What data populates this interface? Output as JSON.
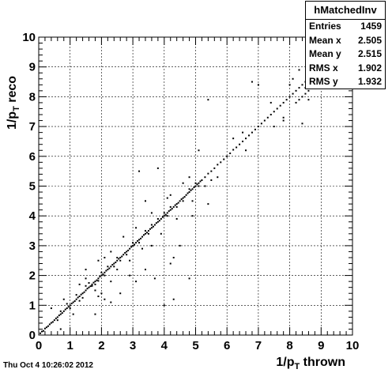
{
  "chart_data": {
    "type": "scatter",
    "title": "",
    "xlabel_main": "1/p",
    "xlabel_sub": "T",
    "xlabel_rest": " thrown",
    "ylabel_main": "1/p",
    "ylabel_sub": "T",
    "ylabel_rest": " reco",
    "xlim": [
      0,
      10
    ],
    "ylim": [
      0,
      10
    ],
    "grid": true,
    "x_ticks": [
      "0",
      "1",
      "2",
      "3",
      "4",
      "5",
      "6",
      "7",
      "8",
      "9",
      "10"
    ],
    "y_ticks": [
      "0",
      "1",
      "2",
      "3",
      "4",
      "5",
      "6",
      "7",
      "8",
      "9",
      "10"
    ],
    "series": [
      {
        "points": [
          [
            0.05,
            0.06
          ],
          [
            0.1,
            0.12
          ],
          [
            0.15,
            0.14
          ],
          [
            0.2,
            0.22
          ],
          [
            0.25,
            0.26
          ],
          [
            0.3,
            0.3
          ],
          [
            0.35,
            0.36
          ],
          [
            0.4,
            0.41
          ],
          [
            0.45,
            0.44
          ],
          [
            0.5,
            0.5
          ],
          [
            0.55,
            0.56
          ],
          [
            0.6,
            0.6
          ],
          [
            0.65,
            0.66
          ],
          [
            0.7,
            0.7
          ],
          [
            0.75,
            0.74
          ],
          [
            0.8,
            0.8
          ],
          [
            0.85,
            0.86
          ],
          [
            0.9,
            0.9
          ],
          [
            0.95,
            0.95
          ],
          [
            1.0,
            1.0
          ],
          [
            1.05,
            1.06
          ],
          [
            1.1,
            1.1
          ],
          [
            1.15,
            1.14
          ],
          [
            1.2,
            1.2
          ],
          [
            1.25,
            1.26
          ],
          [
            1.3,
            1.3
          ],
          [
            1.35,
            1.36
          ],
          [
            1.4,
            1.4
          ],
          [
            1.45,
            1.44
          ],
          [
            1.5,
            1.5
          ],
          [
            1.55,
            1.56
          ],
          [
            1.6,
            1.6
          ],
          [
            1.65,
            1.64
          ],
          [
            1.7,
            1.7
          ],
          [
            1.75,
            1.76
          ],
          [
            1.8,
            1.8
          ],
          [
            1.85,
            1.84
          ],
          [
            1.9,
            1.9
          ],
          [
            1.95,
            1.96
          ],
          [
            2.0,
            2.0
          ],
          [
            2.05,
            2.04
          ],
          [
            2.1,
            2.1
          ],
          [
            2.15,
            2.16
          ],
          [
            2.2,
            2.2
          ],
          [
            2.25,
            2.24
          ],
          [
            2.3,
            2.3
          ],
          [
            2.35,
            2.36
          ],
          [
            2.4,
            2.4
          ],
          [
            2.45,
            2.44
          ],
          [
            2.5,
            2.5
          ],
          [
            2.55,
            2.56
          ],
          [
            2.6,
            2.6
          ],
          [
            2.65,
            2.64
          ],
          [
            2.7,
            2.7
          ],
          [
            2.75,
            2.76
          ],
          [
            2.8,
            2.8
          ],
          [
            2.85,
            2.84
          ],
          [
            2.9,
            2.9
          ],
          [
            2.95,
            2.96
          ],
          [
            3.0,
            3.0
          ],
          [
            3.05,
            3.04
          ],
          [
            3.1,
            3.1
          ],
          [
            3.15,
            3.16
          ],
          [
            3.2,
            3.2
          ],
          [
            3.25,
            3.24
          ],
          [
            3.3,
            3.3
          ],
          [
            3.35,
            3.36
          ],
          [
            3.4,
            3.4
          ],
          [
            3.45,
            3.44
          ],
          [
            3.5,
            3.5
          ],
          [
            3.55,
            3.56
          ],
          [
            3.6,
            3.6
          ],
          [
            3.65,
            3.64
          ],
          [
            3.7,
            3.7
          ],
          [
            3.75,
            3.76
          ],
          [
            3.8,
            3.8
          ],
          [
            3.85,
            3.84
          ],
          [
            3.9,
            3.9
          ],
          [
            3.95,
            3.96
          ],
          [
            4.0,
            4.0
          ],
          [
            4.05,
            4.04
          ],
          [
            4.1,
            4.1
          ],
          [
            4.15,
            4.16
          ],
          [
            4.2,
            4.2
          ],
          [
            4.25,
            4.24
          ],
          [
            4.3,
            4.3
          ],
          [
            4.35,
            4.36
          ],
          [
            4.4,
            4.4
          ],
          [
            4.45,
            4.44
          ],
          [
            4.5,
            4.5
          ],
          [
            4.55,
            4.56
          ],
          [
            4.6,
            4.6
          ],
          [
            4.65,
            4.64
          ],
          [
            4.7,
            4.7
          ],
          [
            4.75,
            4.76
          ],
          [
            4.8,
            4.8
          ],
          [
            4.85,
            4.86
          ],
          [
            4.9,
            4.9
          ],
          [
            4.95,
            4.96
          ],
          [
            5.0,
            5.0
          ],
          [
            5.05,
            5.06
          ],
          [
            5.1,
            5.1
          ],
          [
            5.15,
            5.16
          ],
          [
            5.2,
            5.2
          ],
          [
            5.3,
            5.3
          ],
          [
            5.4,
            5.42
          ],
          [
            5.5,
            5.5
          ],
          [
            5.6,
            5.6
          ],
          [
            5.7,
            5.72
          ],
          [
            5.8,
            5.8
          ],
          [
            5.9,
            5.9
          ],
          [
            6.0,
            6.0
          ],
          [
            6.1,
            6.1
          ],
          [
            6.2,
            6.22
          ],
          [
            6.3,
            6.3
          ],
          [
            6.4,
            6.4
          ],
          [
            6.5,
            6.5
          ],
          [
            6.6,
            6.6
          ],
          [
            6.7,
            6.7
          ],
          [
            6.8,
            6.8
          ],
          [
            6.9,
            6.9
          ],
          [
            7.0,
            7.0
          ],
          [
            7.1,
            7.1
          ],
          [
            7.2,
            7.2
          ],
          [
            7.3,
            7.3
          ],
          [
            7.4,
            7.4
          ],
          [
            7.5,
            7.5
          ],
          [
            7.6,
            7.6
          ],
          [
            7.7,
            7.7
          ],
          [
            7.8,
            7.8
          ],
          [
            7.9,
            7.9
          ],
          [
            8.0,
            8.0
          ],
          [
            8.1,
            8.1
          ],
          [
            8.2,
            8.2
          ],
          [
            8.3,
            8.3
          ],
          [
            8.4,
            8.4
          ],
          [
            8.5,
            8.5
          ],
          [
            8.6,
            8.6
          ],
          [
            8.7,
            8.7
          ],
          [
            8.8,
            8.8
          ],
          [
            8.9,
            8.9
          ],
          [
            1.6,
            1.75
          ],
          [
            1.7,
            1.65
          ],
          [
            1.8,
            1.7
          ],
          [
            1.9,
            1.82
          ],
          [
            2.0,
            2.1
          ],
          [
            2.1,
            2.0
          ],
          [
            2.2,
            2.3
          ],
          [
            2.4,
            2.3
          ],
          [
            2.5,
            2.6
          ],
          [
            2.6,
            2.5
          ],
          [
            2.8,
            2.7
          ],
          [
            3.0,
            3.1
          ],
          [
            3.2,
            3.1
          ],
          [
            3.4,
            3.5
          ],
          [
            3.5,
            3.4
          ],
          [
            3.6,
            3.7
          ],
          [
            3.8,
            3.9
          ],
          [
            4.0,
            4.1
          ],
          [
            4.1,
            4.0
          ],
          [
            4.2,
            4.3
          ],
          [
            4.4,
            4.3
          ],
          [
            4.6,
            4.5
          ],
          [
            4.8,
            4.9
          ],
          [
            5.0,
            5.1
          ],
          [
            5.1,
            5.0
          ],
          [
            1.2,
            1.35
          ],
          [
            1.3,
            1.15
          ],
          [
            1.4,
            1.25
          ],
          [
            1.5,
            1.65
          ],
          [
            0.9,
            1.05
          ],
          [
            1.0,
            0.9
          ],
          [
            0.7,
            0.8
          ],
          [
            0.6,
            0.5
          ],
          [
            1.5,
            1.9
          ],
          [
            1.8,
            1.5
          ],
          [
            2.3,
            2.8
          ],
          [
            2.5,
            2.2
          ],
          [
            2.7,
            3.3
          ],
          [
            2.9,
            2.5
          ],
          [
            3.1,
            3.6
          ],
          [
            3.3,
            2.9
          ],
          [
            3.6,
            4.1
          ],
          [
            3.9,
            3.4
          ],
          [
            4.2,
            4.7
          ],
          [
            4.4,
            3.9
          ],
          [
            4.6,
            5.1
          ],
          [
            4.9,
            4.5
          ],
          [
            1.1,
            0.7
          ],
          [
            0.8,
            1.2
          ],
          [
            1.3,
            1.7
          ],
          [
            1.9,
            1.3
          ],
          [
            2.1,
            2.6
          ],
          [
            2.3,
            1.8
          ],
          [
            5.3,
            5.0
          ],
          [
            5.7,
            5.3
          ],
          [
            6.2,
            6.6
          ],
          [
            6.6,
            6.2
          ],
          [
            7.4,
            7.8
          ],
          [
            7.8,
            7.3
          ],
          [
            8.0,
            8.4
          ],
          [
            8.3,
            7.9
          ],
          [
            8.6,
            8.2
          ],
          [
            8.7,
            9.0
          ],
          [
            8.2,
            7.8
          ],
          [
            8.5,
            8.1
          ],
          [
            8.4,
            8.0
          ],
          [
            8.8,
            8.5
          ],
          [
            3.2,
            5.5
          ],
          [
            3.8,
            5.6
          ],
          [
            4.0,
            1.0
          ],
          [
            4.3,
            1.2
          ],
          [
            4.5,
            3.0
          ],
          [
            4.8,
            1.9
          ],
          [
            3.1,
            1.8
          ],
          [
            2.6,
            1.4
          ],
          [
            3.6,
            3.0
          ],
          [
            5.4,
            7.9
          ],
          [
            5.5,
            5.2
          ],
          [
            5.1,
            6.2
          ],
          [
            4.8,
            5.3
          ],
          [
            6.8,
            8.5
          ],
          [
            7.0,
            8.4
          ],
          [
            8.5,
            8.3
          ],
          [
            8.1,
            8.6
          ],
          [
            8.3,
            8.9
          ],
          [
            8.9,
            8.6
          ],
          [
            8.6,
            7.9
          ],
          [
            8.4,
            7.1
          ],
          [
            7.8,
            7.2
          ],
          [
            7.5,
            7.0
          ],
          [
            6.5,
            6.8
          ],
          [
            5.4,
            4.4
          ],
          [
            4.9,
            4.0
          ],
          [
            4.1,
            4.6
          ],
          [
            4.2,
            2.4
          ],
          [
            4.3,
            2.6
          ],
          [
            2.9,
            2.0
          ],
          [
            3.4,
            4.5
          ],
          [
            1.9,
            2.5
          ],
          [
            0.7,
            0.2
          ],
          [
            0.4,
            0.9
          ],
          [
            1.8,
            0.7
          ],
          [
            2.3,
            1.1
          ],
          [
            2.1,
            1.2
          ],
          [
            3.7,
            1.9
          ],
          [
            3.4,
            2.2
          ],
          [
            1.5,
            2.2
          ],
          [
            2.0,
            1.4
          ]
        ]
      }
    ]
  },
  "stats": {
    "title": "hMatchedInv",
    "rows": [
      {
        "label": "Entries",
        "value": "1459"
      },
      {
        "label": "Mean x",
        "value": "2.505"
      },
      {
        "label": "Mean y",
        "value": "2.515"
      },
      {
        "label": "RMS x",
        "value": "1.902"
      },
      {
        "label": "RMS y",
        "value": "1.932"
      }
    ]
  },
  "footer": {
    "date": "Thu Oct  4 10:26:02 2012"
  }
}
